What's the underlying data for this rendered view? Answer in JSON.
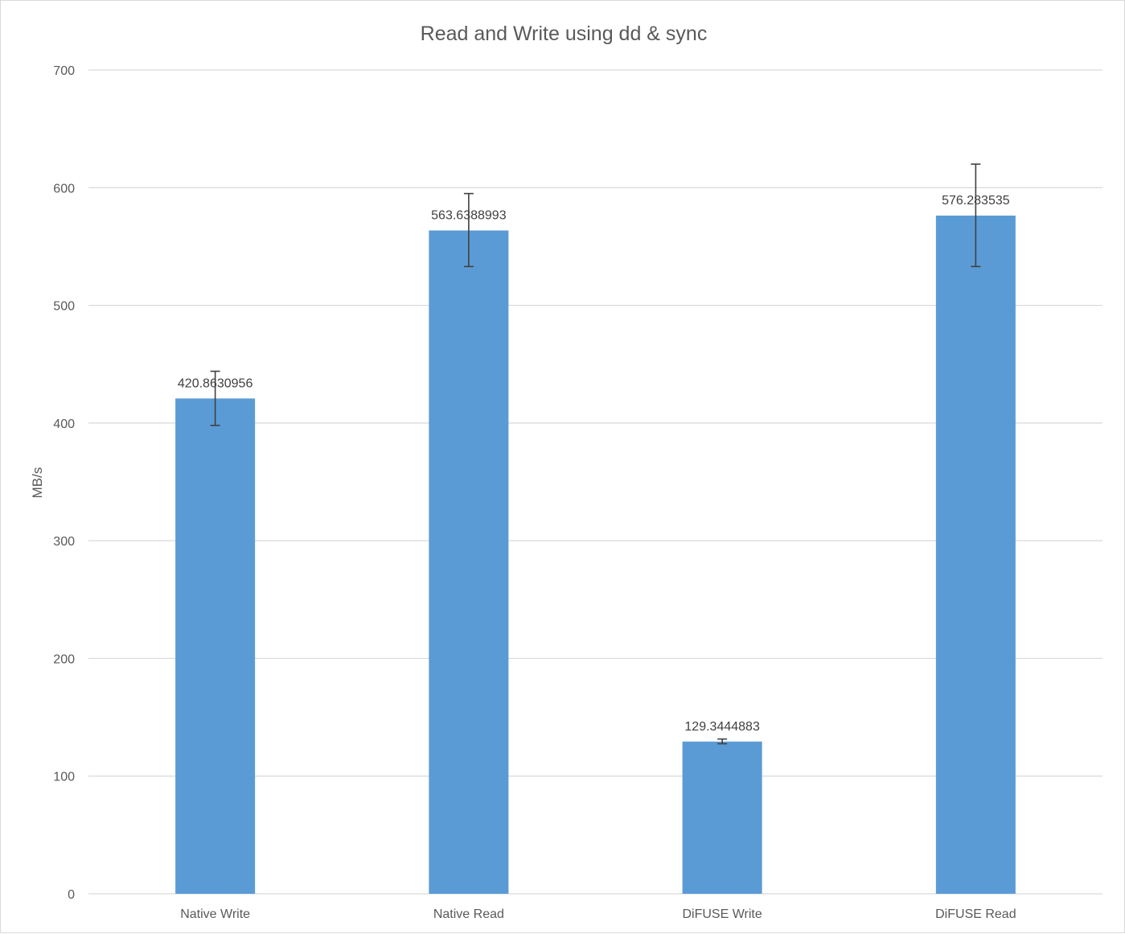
{
  "chart_data": {
    "type": "bar",
    "title": "Read and Write using dd & sync",
    "xlabel": "",
    "ylabel": "MB/s",
    "ylim": [
      0,
      700
    ],
    "yticks": [
      0,
      100,
      200,
      300,
      400,
      500,
      600,
      700
    ],
    "grid": true,
    "legend": "none",
    "categories": [
      "Native Write",
      "Native Read",
      "DiFUSE Write",
      "DiFUSE Read"
    ],
    "values": [
      420.8630956,
      563.6388993,
      129.3444883,
      576.283535
    ],
    "value_labels": [
      "420.8630956",
      "563.6388993",
      "129.3444883",
      "576.283535"
    ],
    "error_bars": [
      {
        "low": 398,
        "high": 444
      },
      {
        "low": 533,
        "high": 595
      },
      {
        "low": 127.5,
        "high": 131.5
      },
      {
        "low": 533,
        "high": 620
      }
    ],
    "bar_color": "#5b9bd5"
  }
}
